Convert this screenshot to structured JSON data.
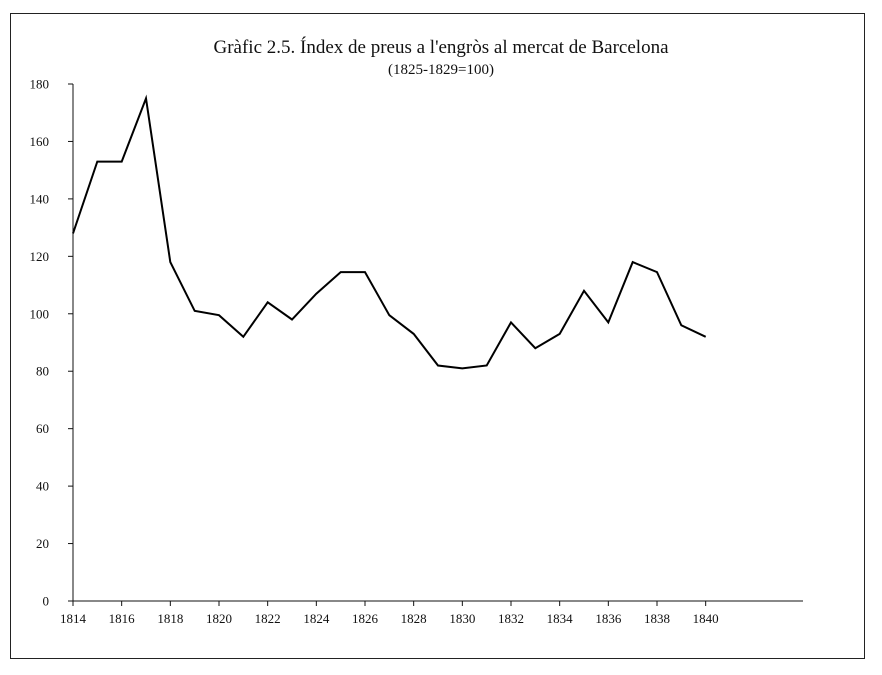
{
  "chart_data": {
    "type": "line",
    "title": "Gràfic 2.5. Índex de preus a l'engròs al mercat de Barcelona",
    "subtitle": "(1825-1829=100)",
    "xlabel": "",
    "ylabel": "",
    "xlim": [
      1814,
      1844
    ],
    "ylim": [
      0,
      180
    ],
    "x_ticks": [
      1814,
      1816,
      1818,
      1820,
      1822,
      1824,
      1826,
      1828,
      1830,
      1832,
      1834,
      1836,
      1838,
      1840
    ],
    "y_ticks": [
      0,
      20,
      40,
      60,
      80,
      100,
      120,
      140,
      160,
      180
    ],
    "grid": false,
    "legend": "none",
    "line_color": "#000000",
    "series": [
      {
        "x": [
          1814,
          1815,
          1816,
          1817,
          1818,
          1819,
          1820,
          1821,
          1822,
          1823,
          1824,
          1825,
          1826,
          1827,
          1828,
          1829,
          1830,
          1831,
          1832,
          1833,
          1834,
          1835,
          1836,
          1837,
          1838,
          1839,
          1840
        ],
        "values": [
          128,
          153,
          153,
          175,
          118,
          101,
          99.5,
          92,
          104,
          98,
          107,
          114.5,
          114.5,
          99.5,
          93,
          82,
          81,
          82,
          97,
          88,
          93,
          108,
          97,
          118,
          114.5,
          96,
          92
        ]
      }
    ]
  }
}
